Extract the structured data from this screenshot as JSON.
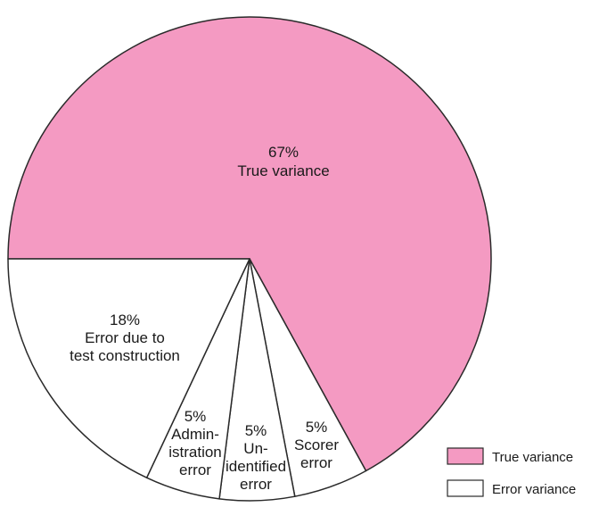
{
  "chart_data": {
    "type": "pie",
    "slices": [
      {
        "key": "true",
        "value": 67,
        "pct_label": "67%",
        "label_lines": [
          "True variance"
        ],
        "color": "#f49ac2",
        "category": "True variance"
      },
      {
        "key": "scorer",
        "value": 5,
        "pct_label": "5%",
        "label_lines": [
          "Scorer",
          "error"
        ],
        "color": "#ffffff",
        "category": "Error variance"
      },
      {
        "key": "unidentified",
        "value": 5,
        "pct_label": "5%",
        "label_lines": [
          "Un-",
          "identified",
          "error"
        ],
        "color": "#ffffff",
        "category": "Error variance"
      },
      {
        "key": "administration",
        "value": 5,
        "pct_label": "5%",
        "label_lines": [
          "Admin-",
          "istration",
          "error"
        ],
        "color": "#ffffff",
        "category": "Error variance"
      },
      {
        "key": "construction",
        "value": 18,
        "pct_label": "18%",
        "label_lines": [
          "Error due to",
          "test construction"
        ],
        "color": "#ffffff",
        "category": "Error variance"
      }
    ],
    "legend": [
      {
        "label": "True variance",
        "color": "#f49ac2"
      },
      {
        "label": "Error variance",
        "color": "#ffffff"
      }
    ],
    "legend_position": "bottom-right",
    "stroke_color": "#2a2a2a"
  }
}
